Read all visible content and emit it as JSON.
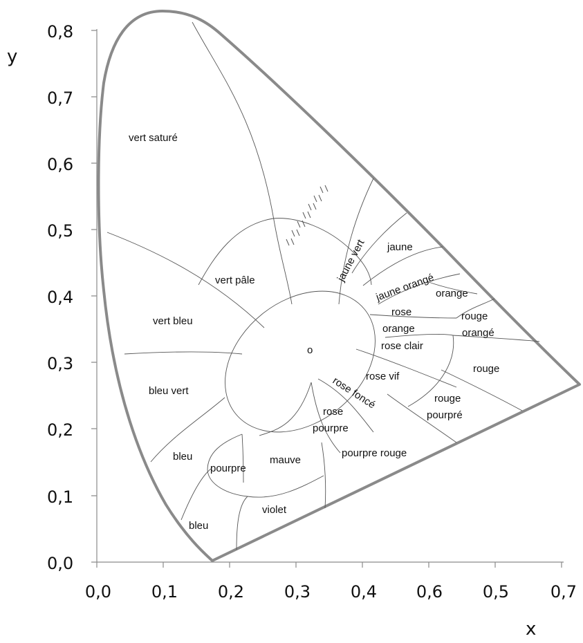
{
  "chart_data": {
    "type": "diagram",
    "xlabel": "x",
    "ylabel": "y",
    "x_ticks": [
      "0,0",
      "0,1",
      "0,2",
      "0,3",
      "0,4",
      "0,6",
      "0,5",
      "0,7"
    ],
    "y_ticks": [
      "0,0",
      "0,1",
      "0,2",
      "0,3",
      "0,4",
      "0,5",
      "0,6",
      "0,7",
      "0,8"
    ],
    "regions": [
      "vert saturé",
      "vert pâle",
      "vert bleu",
      "bleu vert",
      "bleu",
      "bleu",
      "pourpre",
      "mauve",
      "violet",
      "rose pourpre",
      "pourpre rouge",
      "rose foncé",
      "rose vif",
      "rouge pourpré",
      "rouge",
      "rose clair",
      "rose orange",
      "rouge orangé",
      "orange",
      "jaune orangé",
      "jaune",
      "jaune vert"
    ],
    "white_point_label": "o"
  },
  "colors": {
    "locus": "#8a8a8a",
    "boundary": "#555555",
    "text": "#111111"
  }
}
